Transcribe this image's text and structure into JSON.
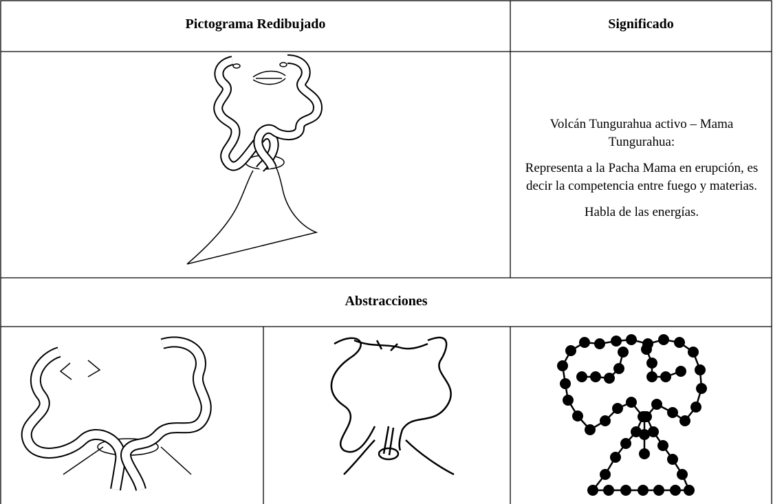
{
  "table": {
    "header": [
      "Pictograma Redibujado",
      "Significado"
    ],
    "meaning": [
      "Volcán Tungurahua activo – Mama Tungurahua:",
      "Representa a la Pacha Mama en erupción, es decir la competencia entre fuego y materias.",
      "Habla de las energías."
    ],
    "section": "Abstracciones"
  }
}
